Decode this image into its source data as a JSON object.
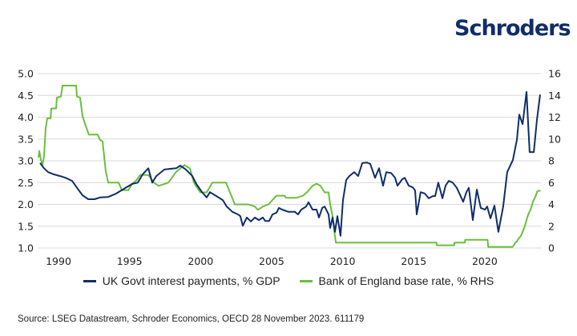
{
  "brand": {
    "logo_text": "Schroders",
    "logo_color": "#0f2d69"
  },
  "source": "Source: LSEG Datastream, Schroder Economics, OECD 28 November 2023. 611179",
  "chart_data": {
    "type": "line",
    "title": "",
    "xlabel": "",
    "ylabel": "",
    "ylabel_right": "",
    "xlim": [
      1988.53,
      2023.95
    ],
    "ylim": [
      1.0,
      5.0
    ],
    "ylim_right": [
      0,
      16
    ],
    "x_ticks": [
      1990,
      1995,
      2000,
      2005,
      2010,
      2015,
      2020
    ],
    "y_ticks": [
      "1.0",
      "1.5",
      "2.0",
      "2.5",
      "3.0",
      "3.5",
      "4.0",
      "4.5",
      "5.0"
    ],
    "y_ticks_right": [
      "0",
      "2",
      "4",
      "6",
      "8",
      "10",
      "12",
      "14",
      "16"
    ],
    "grid": "horizontal",
    "legend_position": "bottom",
    "series": [
      {
        "name": "UK Govt interest payments, % GDP",
        "axis": "left",
        "color": "#0f2d69",
        "points": [
          [
            1988.7,
            2.95
          ],
          [
            1988.98,
            2.83
          ],
          [
            1989.27,
            2.74
          ],
          [
            1989.66,
            2.69
          ],
          [
            1990.11,
            2.65
          ],
          [
            1990.51,
            2.61
          ],
          [
            1990.96,
            2.54
          ],
          [
            1991.35,
            2.36
          ],
          [
            1991.69,
            2.21
          ],
          [
            1992.09,
            2.12
          ],
          [
            1992.54,
            2.12
          ],
          [
            1992.93,
            2.16
          ],
          [
            1993.5,
            2.17
          ],
          [
            1994.06,
            2.25
          ],
          [
            1994.62,
            2.36
          ],
          [
            1995.19,
            2.47
          ],
          [
            1995.58,
            2.5
          ],
          [
            1995.92,
            2.69
          ],
          [
            1996.32,
            2.83
          ],
          [
            1996.6,
            2.5
          ],
          [
            1996.88,
            2.65
          ],
          [
            1997.45,
            2.8
          ],
          [
            1998.01,
            2.82
          ],
          [
            1998.29,
            2.83
          ],
          [
            1998.57,
            2.89
          ],
          [
            1998.97,
            2.8
          ],
          [
            1999.42,
            2.65
          ],
          [
            1999.7,
            2.47
          ],
          [
            2000.1,
            2.28
          ],
          [
            2000.43,
            2.16
          ],
          [
            2000.66,
            2.28
          ],
          [
            2001.11,
            2.19
          ],
          [
            2001.56,
            2.1
          ],
          [
            2001.84,
            1.95
          ],
          [
            2002.24,
            1.83
          ],
          [
            2002.63,
            1.77
          ],
          [
            2002.8,
            1.73
          ],
          [
            2002.97,
            1.51
          ],
          [
            2003.25,
            1.7
          ],
          [
            2003.54,
            1.61
          ],
          [
            2003.82,
            1.7
          ],
          [
            2004.1,
            1.64
          ],
          [
            2004.38,
            1.7
          ],
          [
            2004.55,
            1.62
          ],
          [
            2004.83,
            1.62
          ],
          [
            2005.06,
            1.77
          ],
          [
            2005.34,
            1.81
          ],
          [
            2005.51,
            1.92
          ],
          [
            2005.74,
            1.88
          ],
          [
            2006.19,
            1.83
          ],
          [
            2006.64,
            1.83
          ],
          [
            2006.86,
            1.77
          ],
          [
            2007.09,
            1.88
          ],
          [
            2007.43,
            1.95
          ],
          [
            2007.6,
            2.05
          ],
          [
            2007.88,
            1.88
          ],
          [
            2008.16,
            1.88
          ],
          [
            2008.33,
            1.7
          ],
          [
            2008.56,
            1.92
          ],
          [
            2008.73,
            1.95
          ],
          [
            2009.01,
            1.77
          ],
          [
            2009.12,
            1.46
          ],
          [
            2009.29,
            1.7
          ],
          [
            2009.46,
            1.37
          ],
          [
            2009.63,
            1.73
          ],
          [
            2009.85,
            1.28
          ],
          [
            2010.02,
            2.1
          ],
          [
            2010.25,
            2.56
          ],
          [
            2010.47,
            2.65
          ],
          [
            2010.81,
            2.74
          ],
          [
            2011.09,
            2.65
          ],
          [
            2011.38,
            2.95
          ],
          [
            2011.71,
            2.96
          ],
          [
            2011.94,
            2.93
          ],
          [
            2012.28,
            2.61
          ],
          [
            2012.56,
            2.83
          ],
          [
            2012.84,
            2.43
          ],
          [
            2013.07,
            2.74
          ],
          [
            2013.41,
            2.72
          ],
          [
            2013.69,
            2.61
          ],
          [
            2013.86,
            2.43
          ],
          [
            2014.2,
            2.58
          ],
          [
            2014.37,
            2.61
          ],
          [
            2014.65,
            2.43
          ],
          [
            2014.93,
            2.39
          ],
          [
            2015.1,
            2.32
          ],
          [
            2015.21,
            1.77
          ],
          [
            2015.49,
            2.28
          ],
          [
            2015.78,
            2.25
          ],
          [
            2016.06,
            2.14
          ],
          [
            2016.34,
            2.19
          ],
          [
            2016.51,
            2.19
          ],
          [
            2016.73,
            2.5
          ],
          [
            2017.02,
            2.14
          ],
          [
            2017.24,
            2.43
          ],
          [
            2017.47,
            2.54
          ],
          [
            2017.75,
            2.5
          ],
          [
            2018.03,
            2.38
          ],
          [
            2018.48,
            2.06
          ],
          [
            2018.71,
            2.28
          ],
          [
            2018.88,
            2.38
          ],
          [
            2019.16,
            1.64
          ],
          [
            2019.44,
            2.34
          ],
          [
            2019.72,
            1.92
          ],
          [
            2020.01,
            1.88
          ],
          [
            2020.17,
            1.95
          ],
          [
            2020.4,
            1.68
          ],
          [
            2020.68,
            1.97
          ],
          [
            2020.96,
            1.37
          ],
          [
            2021.3,
            1.95
          ],
          [
            2021.58,
            2.74
          ],
          [
            2021.98,
            3.02
          ],
          [
            2022.26,
            3.48
          ],
          [
            2022.43,
            4.06
          ],
          [
            2022.66,
            3.84
          ],
          [
            2022.94,
            4.58
          ],
          [
            2023.16,
            3.2
          ],
          [
            2023.45,
            3.2
          ],
          [
            2023.67,
            3.94
          ],
          [
            2023.9,
            4.52
          ]
        ]
      },
      {
        "name": "Bank of England base rate, % RHS",
        "axis": "right",
        "color": "#6abf3c",
        "points": [
          [
            1988.59,
            8.3
          ],
          [
            1988.65,
            8.9
          ],
          [
            1988.76,
            8.1
          ],
          [
            1988.87,
            7.6
          ],
          [
            1988.98,
            8.4
          ],
          [
            1989.1,
            11.0
          ],
          [
            1989.21,
            11.9
          ],
          [
            1989.44,
            11.9
          ],
          [
            1989.49,
            12.8
          ],
          [
            1989.83,
            12.8
          ],
          [
            1989.89,
            13.8
          ],
          [
            1990.17,
            13.9
          ],
          [
            1990.28,
            14.9
          ],
          [
            1991.24,
            14.9
          ],
          [
            1991.3,
            13.9
          ],
          [
            1991.52,
            13.8
          ],
          [
            1991.69,
            12.1
          ],
          [
            1991.86,
            11.4
          ],
          [
            1991.97,
            11.0
          ],
          [
            1992.14,
            10.4
          ],
          [
            1992.76,
            10.4
          ],
          [
            1992.93,
            9.9
          ],
          [
            1993.1,
            9.8
          ],
          [
            1993.33,
            7.0
          ],
          [
            1993.5,
            6.0
          ],
          [
            1994.23,
            6.0
          ],
          [
            1994.46,
            5.3
          ],
          [
            1994.91,
            5.3
          ],
          [
            1995.19,
            5.9
          ],
          [
            1995.47,
            6.2
          ],
          [
            1995.75,
            6.7
          ],
          [
            1996.32,
            6.7
          ],
          [
            1996.71,
            6.0
          ],
          [
            1997.05,
            5.7
          ],
          [
            1997.73,
            6.0
          ],
          [
            1998.29,
            7.0
          ],
          [
            1998.86,
            7.6
          ],
          [
            1999.25,
            7.3
          ],
          [
            1999.53,
            6.0
          ],
          [
            1999.98,
            5.1
          ],
          [
            2000.43,
            5.1
          ],
          [
            2000.83,
            6.0
          ],
          [
            2001.79,
            6.0
          ],
          [
            2002.07,
            5.1
          ],
          [
            2002.41,
            4.0
          ],
          [
            2003.37,
            4.0
          ],
          [
            2003.82,
            3.8
          ],
          [
            2004.04,
            3.5
          ],
          [
            2004.38,
            3.8
          ],
          [
            2004.78,
            4.0
          ],
          [
            2005.06,
            4.4
          ],
          [
            2005.34,
            4.8
          ],
          [
            2005.91,
            4.8
          ],
          [
            2006.02,
            4.6
          ],
          [
            2006.75,
            4.6
          ],
          [
            2007.2,
            4.8
          ],
          [
            2007.48,
            5.1
          ],
          [
            2007.88,
            5.7
          ],
          [
            2008.16,
            5.9
          ],
          [
            2008.44,
            5.7
          ],
          [
            2008.73,
            5.1
          ],
          [
            2009.01,
            5.1
          ],
          [
            2009.12,
            4.0
          ],
          [
            2009.29,
            2.9
          ],
          [
            2009.4,
            1.6
          ],
          [
            2009.52,
            0.5
          ],
          [
            2016.6,
            0.5
          ],
          [
            2016.62,
            0.25
          ],
          [
            2017.85,
            0.25
          ],
          [
            2017.87,
            0.5
          ],
          [
            2018.6,
            0.5
          ],
          [
            2018.62,
            0.75
          ],
          [
            2020.2,
            0.75
          ],
          [
            2020.24,
            0.1
          ],
          [
            2021.95,
            0.1
          ],
          [
            2022.05,
            0.25
          ],
          [
            2022.15,
            0.5
          ],
          [
            2022.26,
            0.6
          ],
          [
            2022.4,
            0.9
          ],
          [
            2022.54,
            1.1
          ],
          [
            2022.7,
            1.6
          ],
          [
            2022.83,
            2.05
          ],
          [
            2022.99,
            2.8
          ],
          [
            2023.1,
            3.2
          ],
          [
            2023.22,
            3.5
          ],
          [
            2023.39,
            4.25
          ],
          [
            2023.56,
            4.7
          ],
          [
            2023.7,
            5.2
          ],
          [
            2023.78,
            5.25
          ],
          [
            2023.92,
            5.25
          ]
        ]
      }
    ]
  }
}
